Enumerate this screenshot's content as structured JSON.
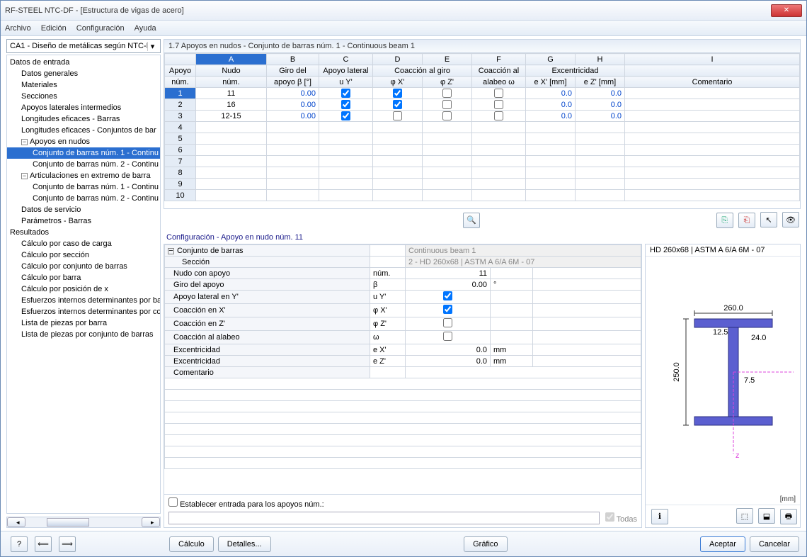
{
  "window": {
    "title": "RF-STEEL NTC-DF - [Estructura de vigas de acero]",
    "close": "✕"
  },
  "menu": [
    "Archivo",
    "Edición",
    "Configuración",
    "Ayuda"
  ],
  "caseSelect": "CA1 - Diseño de metálicas según NTC-D",
  "tree": {
    "root1": "Datos de entrada",
    "items1": [
      "Datos generales",
      "Materiales",
      "Secciones",
      "Apoyos laterales intermedios",
      "Longitudes eficaces - Barras",
      "Longitudes eficaces - Conjuntos de bar"
    ],
    "knotTitle": "Apoyos en nudos",
    "knotItems": [
      "Conjunto de barras núm. 1 - Continu",
      "Conjunto de barras núm. 2 - Continu"
    ],
    "articTitle": "Articulaciones en extremo de barra",
    "articItems": [
      "Conjunto de barras núm. 1 - Continu",
      "Conjunto de barras núm. 2 - Continu"
    ],
    "items2": [
      "Datos de servicio",
      "Parámetros - Barras"
    ],
    "root2": "Resultados",
    "results": [
      "Cálculo por caso de carga",
      "Cálculo por sección",
      "Cálculo por conjunto de barras",
      "Cálculo por barra",
      "Cálculo por posición de x",
      "Esfuerzos internos determinantes por ba",
      "Esfuerzos internos determinantes por co",
      "Lista de piezas por barra",
      "Lista de piezas por conjunto de barras"
    ]
  },
  "panelTitle": "1.7 Apoyos en nudos - Conjunto de barras núm. 1 - Continuous beam 1",
  "grid": {
    "cols": [
      "A",
      "B",
      "C",
      "D",
      "E",
      "F",
      "G",
      "H",
      "I"
    ],
    "hdr1": [
      "Apoyo",
      "Nudo",
      "Giro del",
      "Apoyo lateral",
      "Coacción al giro",
      "",
      "Coacción al",
      "Excentricidad",
      "",
      "  "
    ],
    "hdr2": [
      "núm.",
      "núm.",
      "apoyo β [°]",
      "u Y'",
      "φ X'",
      "φ Z'",
      "alabeo ω",
      "e X' [mm]",
      "e Z' [mm]",
      "Comentario"
    ],
    "rows": [
      {
        "n": "1",
        "nodo": "11",
        "giro": "0.00",
        "uy": true,
        "phx": true,
        "phz": false,
        "w": false,
        "ex": "0.0",
        "ez": "0.0",
        "sel": true
      },
      {
        "n": "2",
        "nodo": "16",
        "giro": "0.00",
        "uy": true,
        "phx": true,
        "phz": false,
        "w": false,
        "ex": "0.0",
        "ez": "0.0"
      },
      {
        "n": "3",
        "nodo": "12-15",
        "giro": "0.00",
        "uy": true,
        "phx": false,
        "phz": false,
        "w": false,
        "ex": "0.0",
        "ez": "0.0"
      },
      {
        "n": "4"
      },
      {
        "n": "5"
      },
      {
        "n": "6"
      },
      {
        "n": "7"
      },
      {
        "n": "8"
      },
      {
        "n": "9"
      },
      {
        "n": "10"
      }
    ]
  },
  "configTitle": "Configuración - Apoyo en nudo núm. 11",
  "config": {
    "conjunto": {
      "lbl": "Conjunto de barras",
      "val": "Continuous beam 1"
    },
    "seccion": {
      "lbl": "Sección",
      "val": "2 - HD 260x68 | ASTM A 6/A 6M - 07"
    },
    "nudo": {
      "lbl": "Nudo con apoyo",
      "sym": "núm.",
      "val": "11"
    },
    "giro": {
      "lbl": "Giro del apoyo",
      "sym": "β",
      "val": "0.00",
      "unit": "°"
    },
    "uy": {
      "lbl": "Apoyo lateral en Y'",
      "sym": "u Y'",
      "chk": true
    },
    "phx": {
      "lbl": "Coacción en X'",
      "sym": "φ X'",
      "chk": true
    },
    "phz": {
      "lbl": "Coacción en Z'",
      "sym": "φ Z'",
      "chk": false
    },
    "w": {
      "lbl": "Coacción al alabeo",
      "sym": "ω",
      "chk": false
    },
    "ex": {
      "lbl": "Excentricidad",
      "sym": "e X'",
      "val": "0.0",
      "unit": "mm"
    },
    "ez": {
      "lbl": "Excentricidad",
      "sym": "e Z'",
      "val": "0.0",
      "unit": "mm"
    },
    "com": {
      "lbl": "Comentario"
    }
  },
  "establecer": "Establecer entrada para los apoyos núm.:",
  "todas": "Todas",
  "preview": {
    "title": "HD 260x68 | ASTM A 6/A 6M - 07",
    "w": "260.0",
    "h": "250.0",
    "tf": "12.5",
    "tw": "7.5",
    "bf": "24.0",
    "unit": "[mm]"
  },
  "buttons": {
    "calculo": "Cálculo",
    "detalles": "Detalles...",
    "grafico": "Gráfico",
    "aceptar": "Aceptar",
    "cancelar": "Cancelar"
  }
}
